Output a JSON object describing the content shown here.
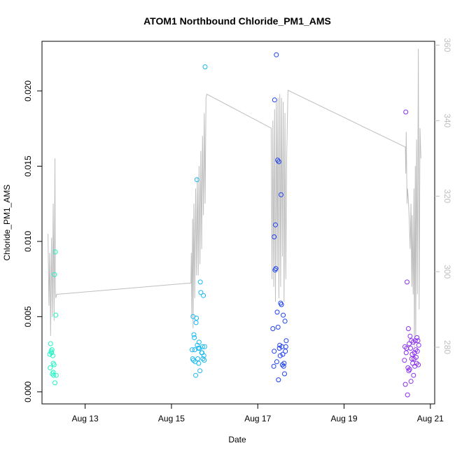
{
  "chart_data": {
    "type": "scatter",
    "title": "ATOM1 Northbound Chloride_PM1_AMS",
    "xlabel": "Date",
    "ylabel": "Chloride_PM1_AMS",
    "y2label": "",
    "xlim": [
      12.0,
      21.1
    ],
    "ylim": [
      -0.0008,
      0.0233
    ],
    "y2lim": [
      265.0,
      361.0
    ],
    "x_ticks": [
      {
        "value": 13,
        "label": "Aug 13"
      },
      {
        "value": 15,
        "label": "Aug 15"
      },
      {
        "value": 17,
        "label": "Aug 17"
      },
      {
        "value": 19,
        "label": "Aug 19"
      },
      {
        "value": 21,
        "label": "Aug 21"
      }
    ],
    "y_ticks": [
      {
        "value": 0.0,
        "label": "0.000"
      },
      {
        "value": 0.005,
        "label": "0.005"
      },
      {
        "value": 0.01,
        "label": "0.010"
      },
      {
        "value": 0.015,
        "label": "0.015"
      },
      {
        "value": 0.02,
        "label": "0.020"
      }
    ],
    "y2_ticks": [
      {
        "value": 280,
        "label": "280"
      },
      {
        "value": 300,
        "label": "300"
      },
      {
        "value": 320,
        "label": "320"
      },
      {
        "value": 340,
        "label": "340"
      },
      {
        "value": 360,
        "label": "360"
      }
    ],
    "grid": false,
    "legend": "none",
    "colors": {
      "line": "#bebebe",
      "group1": "#1ef5c3",
      "group2": "#19b9f3",
      "group3": "#1c3ff0",
      "group4": "#8b2ff0"
    },
    "series": [
      {
        "color_key": "group1",
        "points": [
          [
            12.18,
            0.0025
          ],
          [
            12.19,
            0.0016
          ],
          [
            12.2,
            0.0032
          ],
          [
            12.21,
            0.0027
          ],
          [
            12.22,
            0.0026
          ],
          [
            12.23,
            0.0028
          ],
          [
            12.24,
            0.0012
          ],
          [
            12.25,
            0.0024
          ],
          [
            12.26,
            0.0013
          ],
          [
            12.27,
            0.0011
          ],
          [
            12.28,
            0.0018
          ],
          [
            12.29,
            0.0078
          ],
          [
            12.3,
            0.0006
          ],
          [
            12.31,
            0.0093
          ],
          [
            12.32,
            0.0051
          ],
          [
            12.33,
            0.0011
          ],
          [
            12.26,
            0.0019
          ]
        ]
      },
      {
        "color_key": "group2",
        "points": [
          [
            15.48,
            0.0028
          ],
          [
            15.49,
            0.0022
          ],
          [
            15.5,
            0.005
          ],
          [
            15.51,
            0.0021
          ],
          [
            15.52,
            0.0038
          ],
          [
            15.53,
            0.0036
          ],
          [
            15.54,
            0.0028
          ],
          [
            15.55,
            0.002
          ],
          [
            15.56,
            0.0011
          ],
          [
            15.57,
            0.0046
          ],
          [
            15.58,
            0.0049
          ],
          [
            15.59,
            0.0141
          ],
          [
            15.6,
            0.0031
          ],
          [
            15.61,
            0.0022
          ],
          [
            15.62,
            0.0029
          ],
          [
            15.63,
            0.0019
          ],
          [
            15.64,
            0.0033
          ],
          [
            15.65,
            0.0029
          ],
          [
            15.66,
            0.0014
          ],
          [
            15.67,
            0.0073
          ],
          [
            15.68,
            0.0066
          ],
          [
            15.7,
            0.0026
          ],
          [
            15.72,
            0.003
          ],
          [
            15.73,
            0.0022
          ],
          [
            15.74,
            0.0064
          ],
          [
            15.75,
            0.0024
          ],
          [
            15.76,
            0.0021
          ],
          [
            15.77,
            0.003
          ],
          [
            15.78,
            0.0216
          ],
          [
            15.71,
            0.0026
          ]
        ]
      },
      {
        "color_key": "group3",
        "points": [
          [
            17.35,
            0.0042
          ],
          [
            17.37,
            0.0017
          ],
          [
            17.38,
            0.0103
          ],
          [
            17.39,
            0.0194
          ],
          [
            17.4,
            0.0081
          ],
          [
            17.41,
            0.0111
          ],
          [
            17.42,
            0.0082
          ],
          [
            17.43,
            0.0224
          ],
          [
            17.44,
            0.002
          ],
          [
            17.45,
            0.0053
          ],
          [
            17.46,
            0.0154
          ],
          [
            17.47,
            0.0043
          ],
          [
            17.48,
            0.0008
          ],
          [
            17.49,
            0.0153
          ],
          [
            17.5,
            0.0029
          ],
          [
            17.51,
            0.0031
          ],
          [
            17.52,
            0.0024
          ],
          [
            17.53,
            0.0059
          ],
          [
            17.54,
            0.0131
          ],
          [
            17.55,
            0.0058
          ],
          [
            17.56,
            0.003
          ],
          [
            17.57,
            0.0018
          ],
          [
            17.58,
            0.0025
          ],
          [
            17.59,
            0.0051
          ],
          [
            17.6,
            0.0017
          ],
          [
            17.61,
            0.0019
          ],
          [
            17.62,
            0.0012
          ],
          [
            17.63,
            0.0047
          ],
          [
            17.64,
            0.0027
          ],
          [
            17.65,
            0.003
          ],
          [
            17.66,
            0.0034
          ],
          [
            17.38,
            0.0027
          ]
        ]
      },
      {
        "color_key": "group4",
        "points": [
          [
            20.4,
            0.0021
          ],
          [
            20.41,
            0.003
          ],
          [
            20.42,
            0.0005
          ],
          [
            20.43,
            0.0186
          ],
          [
            20.44,
            0.0026
          ],
          [
            20.45,
            0.0029
          ],
          [
            20.46,
            0.0073
          ],
          [
            20.47,
            -0.0002
          ],
          [
            20.48,
            0.0016
          ],
          [
            20.49,
            0.0042
          ],
          [
            20.5,
            0.0014
          ],
          [
            20.51,
            0.0032
          ],
          [
            20.52,
            0.0015
          ],
          [
            20.53,
            0.0037
          ],
          [
            20.54,
            0.0029
          ],
          [
            20.55,
            0.0007
          ],
          [
            20.56,
            0.0034
          ],
          [
            20.57,
            0.0022
          ],
          [
            20.58,
            0.0025
          ],
          [
            20.59,
            0.0019
          ],
          [
            20.6,
            0.0033
          ],
          [
            20.61,
            0.0011
          ],
          [
            20.62,
            0.0022
          ],
          [
            20.63,
            0.0026
          ],
          [
            20.64,
            0.0017
          ],
          [
            20.65,
            0.0034
          ],
          [
            20.66,
            0.0028
          ],
          [
            20.67,
            0.0023
          ],
          [
            20.68,
            0.0019
          ],
          [
            20.69,
            0.0036
          ],
          [
            20.7,
            0.0027
          ],
          [
            20.71,
            0.0034
          ],
          [
            20.72,
            0.0018
          ],
          [
            20.73,
            0.0031
          ]
        ]
      }
    ],
    "line_series": {
      "y_axis": "right",
      "points": [
        [
          12.14,
          310
        ],
        [
          12.16,
          291
        ],
        [
          12.18,
          305
        ],
        [
          12.2,
          283
        ],
        [
          12.22,
          309
        ],
        [
          12.24,
          288
        ],
        [
          12.26,
          318
        ],
        [
          12.28,
          287
        ],
        [
          12.3,
          330
        ],
        [
          12.31,
          295
        ],
        [
          12.32,
          293
        ],
        [
          12.34,
          294
        ],
        [
          15.45,
          297
        ],
        [
          15.46,
          305
        ],
        [
          15.47,
          288
        ],
        [
          15.49,
          314
        ],
        [
          15.5,
          285
        ],
        [
          15.52,
          318
        ],
        [
          15.54,
          293
        ],
        [
          15.56,
          322
        ],
        [
          15.58,
          299
        ],
        [
          15.6,
          325
        ],
        [
          15.62,
          299
        ],
        [
          15.64,
          328
        ],
        [
          15.66,
          302
        ],
        [
          15.68,
          332
        ],
        [
          15.7,
          306
        ],
        [
          15.72,
          336
        ],
        [
          15.74,
          315
        ],
        [
          15.76,
          342
        ],
        [
          15.78,
          318
        ],
        [
          15.8,
          346
        ],
        [
          15.82,
          347
        ],
        [
          17.31,
          338
        ],
        [
          17.33,
          298
        ],
        [
          17.35,
          340
        ],
        [
          17.37,
          296
        ],
        [
          17.39,
          343
        ],
        [
          17.41,
          292
        ],
        [
          17.43,
          345
        ],
        [
          17.45,
          300
        ],
        [
          17.47,
          346
        ],
        [
          17.49,
          293
        ],
        [
          17.51,
          347
        ],
        [
          17.53,
          296
        ],
        [
          17.55,
          346
        ],
        [
          17.57,
          304
        ],
        [
          17.59,
          345
        ],
        [
          17.61,
          292
        ],
        [
          17.63,
          342
        ],
        [
          17.65,
          298
        ],
        [
          17.67,
          330
        ],
        [
          17.7,
          348
        ],
        [
          20.42,
          333
        ],
        [
          20.43,
          326
        ],
        [
          20.44,
          337
        ],
        [
          20.46,
          318
        ],
        [
          20.47,
          322
        ],
        [
          20.49,
          319
        ],
        [
          20.51,
          314
        ],
        [
          20.53,
          306
        ],
        [
          20.55,
          318
        ],
        [
          20.57,
          296
        ],
        [
          20.58,
          315
        ],
        [
          20.6,
          294
        ],
        [
          20.62,
          322
        ],
        [
          20.63,
          280
        ],
        [
          20.65,
          328
        ],
        [
          20.66,
          283
        ],
        [
          20.68,
          335
        ],
        [
          20.7,
          294
        ],
        [
          20.72,
          359
        ],
        [
          20.74,
          290
        ],
        [
          20.76,
          338
        ],
        [
          20.78,
          330
        ]
      ]
    }
  }
}
